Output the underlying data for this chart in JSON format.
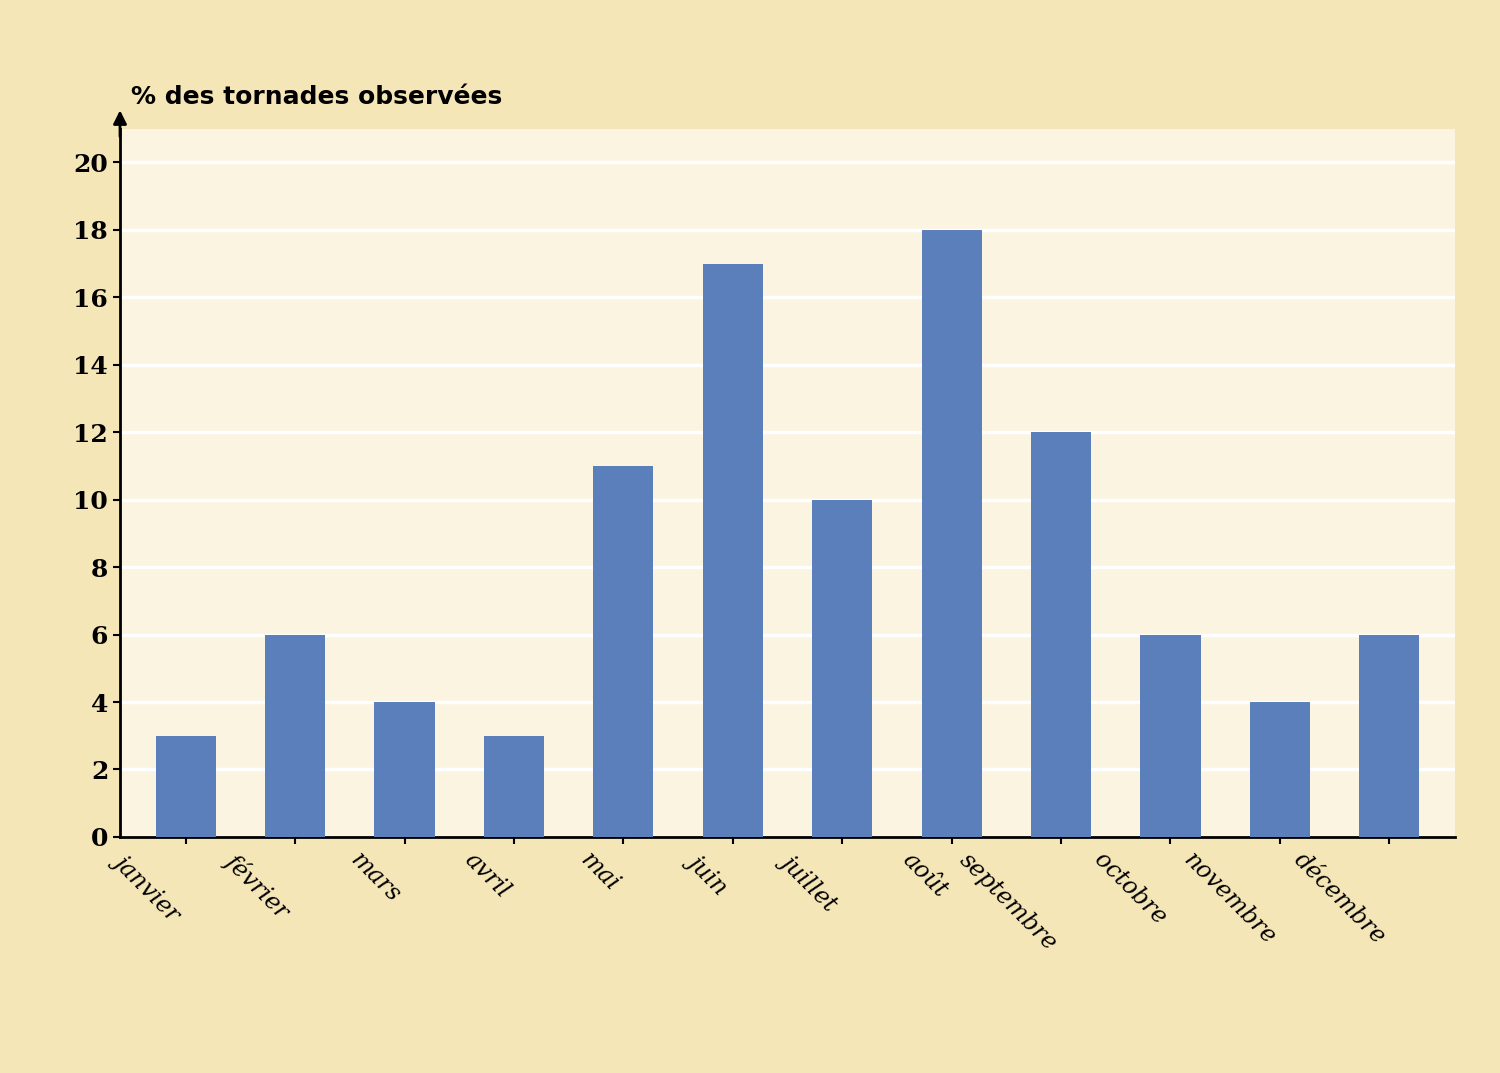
{
  "categories": [
    "janvier",
    "février",
    "mars",
    "avril",
    "mai",
    "juin",
    "juillet",
    "août",
    "septembre",
    "octobre",
    "novembre",
    "décembre"
  ],
  "values": [
    3.0,
    6.0,
    4.0,
    3.0,
    11.0,
    17.0,
    10.0,
    18.0,
    12.0,
    6.0,
    4.0,
    6.0
  ],
  "bar_color": "#5b7fbb",
  "ylabel": "% des tornades observées",
  "ylim": [
    0,
    21
  ],
  "yticks": [
    0,
    2,
    4,
    6,
    8,
    10,
    12,
    14,
    16,
    18,
    20
  ],
  "background_color": "#f5e6b8",
  "plot_background_color": "#faf4e0",
  "grid_color": "#ffffff",
  "bar_width": 0.55,
  "ylabel_fontsize": 18,
  "ytick_fontsize": 18,
  "xtick_fontsize": 17,
  "xlabel_rotation": -45
}
